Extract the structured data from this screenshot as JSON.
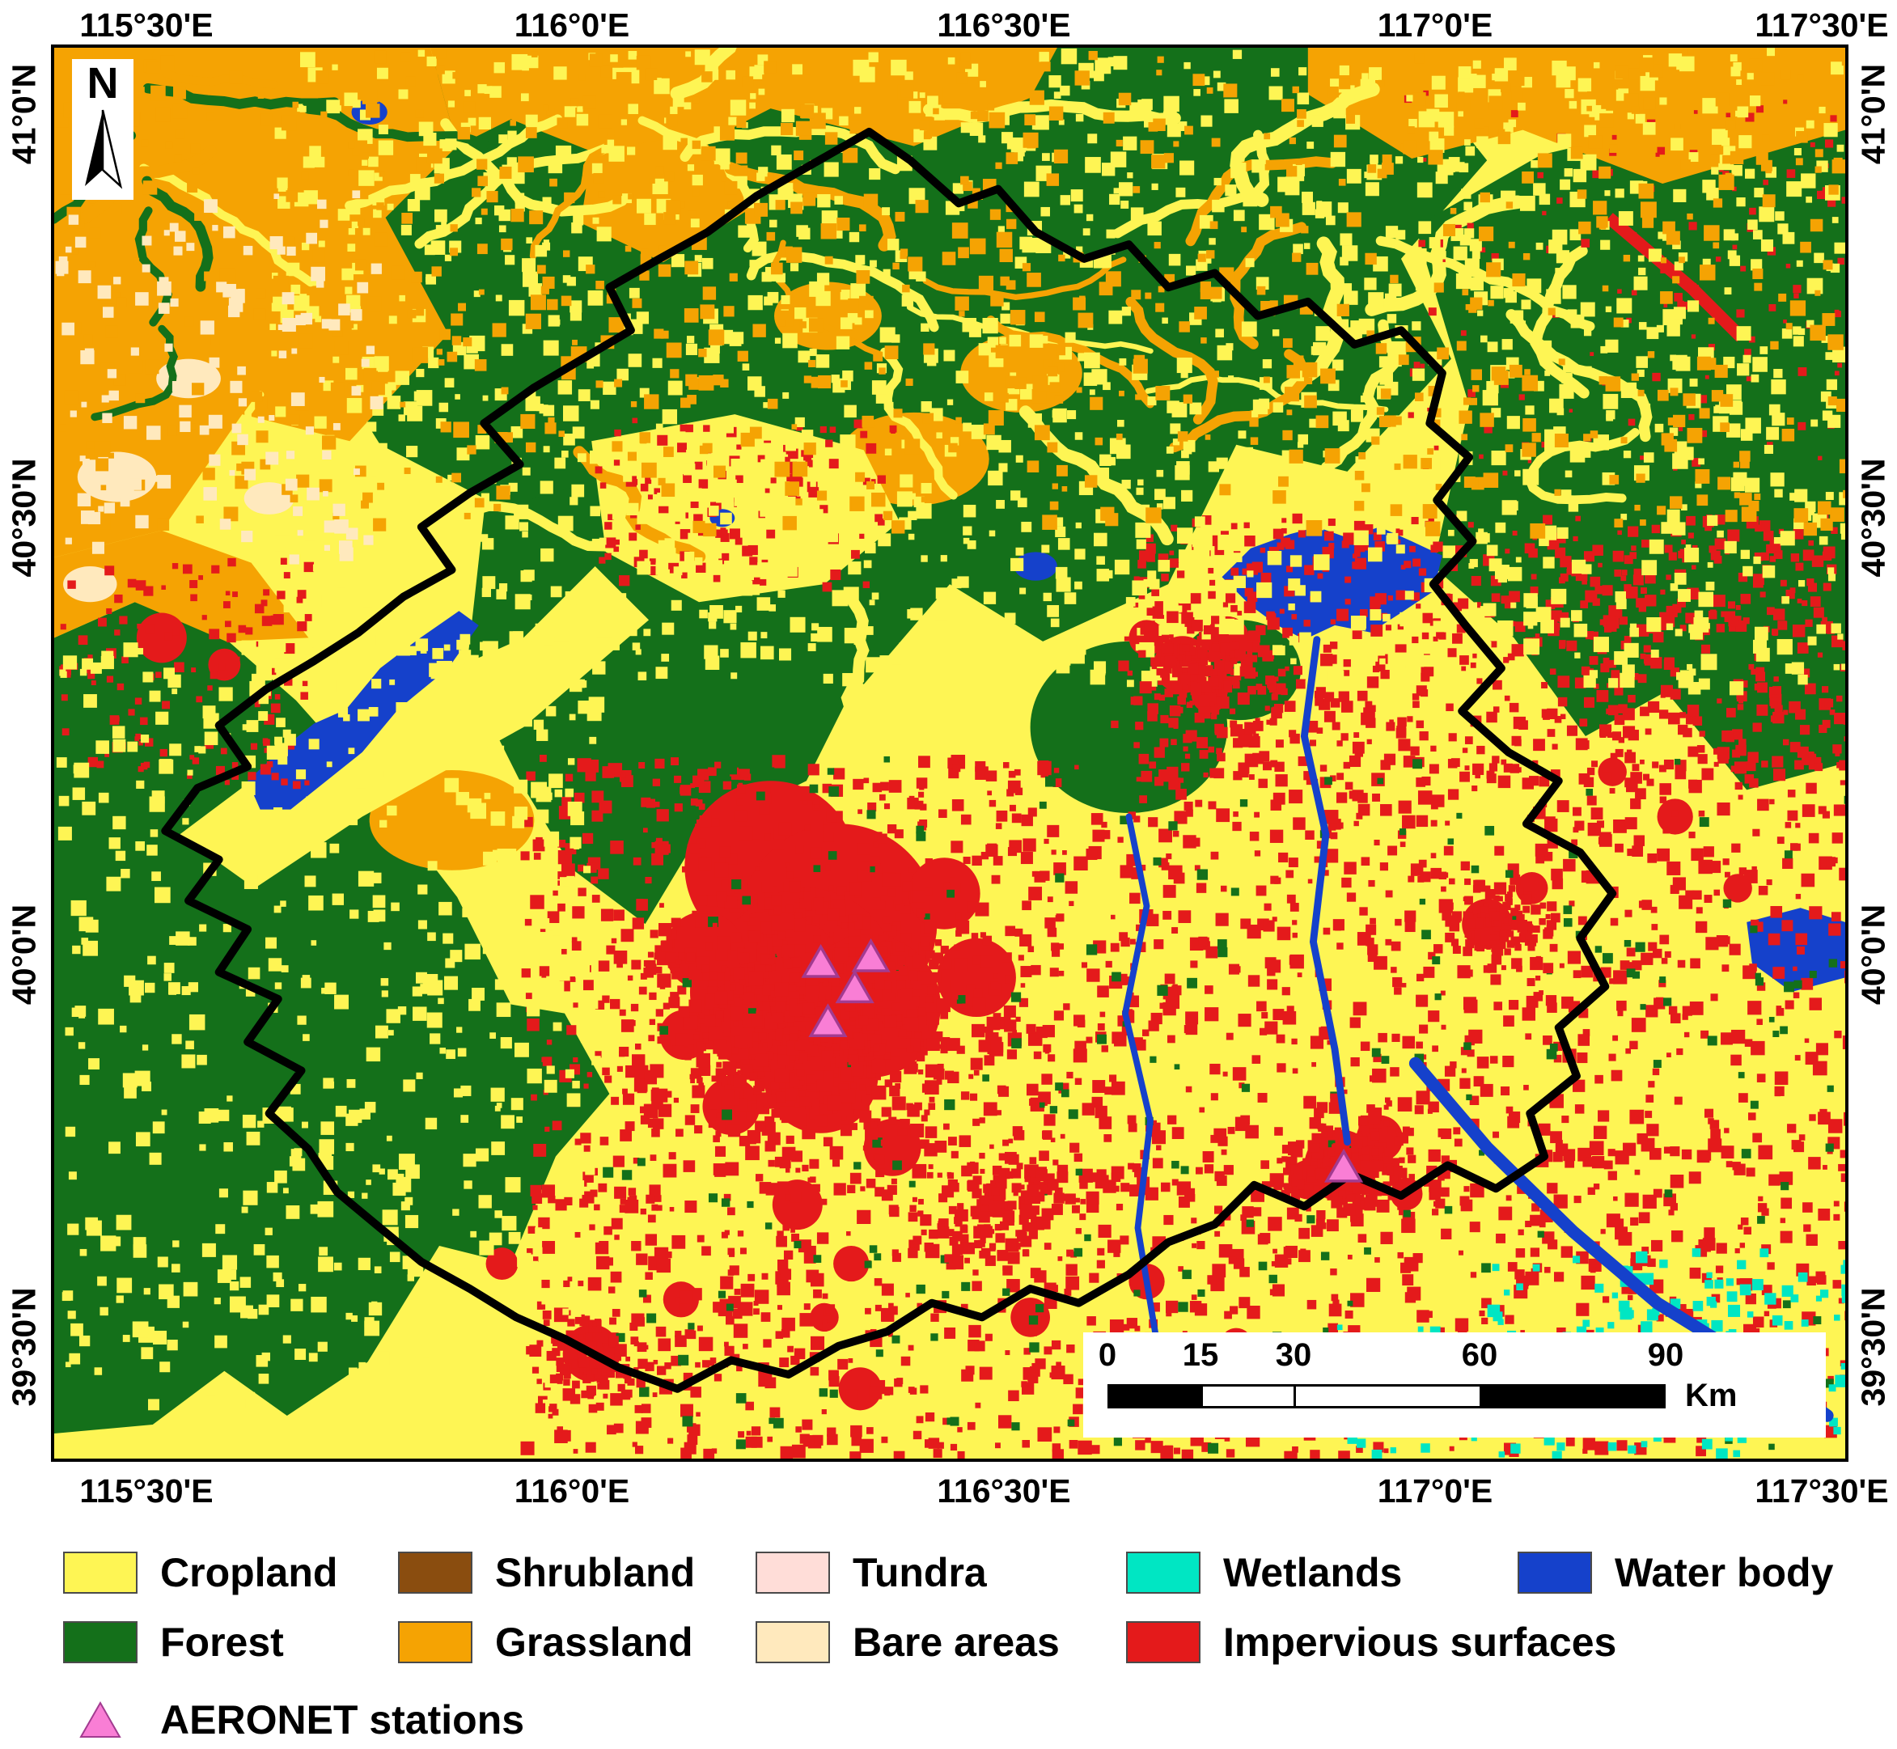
{
  "axes": {
    "top": [
      "115°30'E",
      "116°0'E",
      "116°30'E",
      "117°0'E",
      "117°30'E"
    ],
    "bottom": [
      "115°30'E",
      "116°0'E",
      "116°30'E",
      "117°0'E",
      "117°30'E"
    ],
    "left": [
      "41°0'N",
      "40°30'N",
      "40°0'N",
      "39°30'N"
    ],
    "right": [
      "41°0'N",
      "40°30'N",
      "40°0'N",
      "39°30'N"
    ]
  },
  "north_arrow": {
    "label": "N"
  },
  "scale_bar": {
    "ticks": [
      "0",
      "15",
      "30",
      "60",
      "90"
    ],
    "unit": "Km"
  },
  "legend": {
    "items": [
      {
        "label": "Cropland",
        "color": "#FEF554"
      },
      {
        "label": "Shrubland",
        "color": "#8A4D0F"
      },
      {
        "label": "Tundra",
        "color": "#FFDDD8"
      },
      {
        "label": "Wetlands",
        "color": "#00E6C3"
      },
      {
        "label": "Water body",
        "color": "#1541CB"
      },
      {
        "label": "Forest",
        "color": "#14701A"
      },
      {
        "label": "Grassland",
        "color": "#F5A303"
      },
      {
        "label": "Bare areas",
        "color": "#FFE9BD"
      },
      {
        "label": "Impervious surfaces",
        "color": "#E41A1B"
      }
    ],
    "stations": {
      "label": "AERONET stations",
      "color": "#F97ED5"
    }
  },
  "stations": {
    "markers": [
      {
        "x": 0.428,
        "y": 0.65
      },
      {
        "x": 0.456,
        "y": 0.646
      },
      {
        "x": 0.447,
        "y": 0.668
      },
      {
        "x": 0.432,
        "y": 0.692
      },
      {
        "x": 0.72,
        "y": 0.795
      }
    ]
  }
}
